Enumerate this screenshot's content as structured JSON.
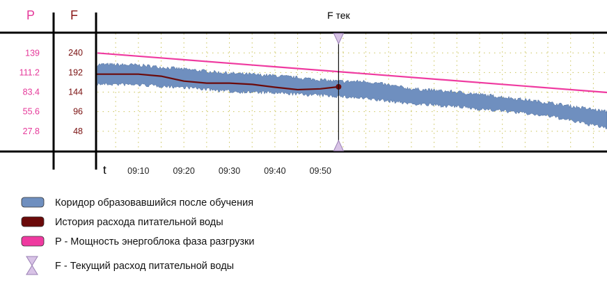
{
  "colors": {
    "corridor": "#6f8fbf",
    "corridor_stroke": "#3f5f8f",
    "history": "#6b0a0a",
    "power": "#ef3aa0",
    "cursor_fill": "#d8c3e6",
    "cursor_stroke": "#9a7fb4",
    "grid": "#c9c255",
    "axis": "#000000"
  },
  "chart_data": {
    "type": "line",
    "x_label": "t",
    "x_ticks": [
      "09:10",
      "09:20",
      "09:30",
      "09:40",
      "09:50"
    ],
    "x_tick_minutes": [
      10,
      20,
      30,
      40,
      50
    ],
    "x_range_minutes": [
      1,
      113
    ],
    "left_axis": {
      "label": "P",
      "ticks": [
        "139",
        "111.2",
        "83.4",
        "55.6",
        "27.8"
      ],
      "tick_values": [
        139,
        111.2,
        83.4,
        55.6,
        27.8
      ],
      "range": [
        0,
        167
      ]
    },
    "right_axis": {
      "label": "F",
      "ticks": [
        "240",
        "192",
        "144",
        "96",
        "48"
      ],
      "tick_values": [
        240,
        192,
        144,
        96,
        48
      ],
      "range": [
        0,
        288
      ]
    },
    "grid": true,
    "cursor": {
      "label": "F тек",
      "x_minutes": 54
    },
    "series": [
      {
        "name": "Коридор образовавшийся после обучения",
        "kind": "band",
        "axis": "F",
        "x_minutes": [
          1,
          10,
          20,
          30,
          40,
          54,
          60,
          70,
          80,
          90,
          100,
          113
        ],
        "lower": [
          168,
          166,
          160,
          150,
          146,
          138,
          132,
          120,
          112,
          102,
          90,
          60
        ],
        "upper": [
          208,
          206,
          196,
          186,
          180,
          166,
          166,
          148,
          140,
          128,
          114,
          92
        ]
      },
      {
        "name": "История расхода питательной воды",
        "kind": "line",
        "axis": "F",
        "x_minutes": [
          1,
          5,
          10,
          15,
          20,
          25,
          30,
          35,
          40,
          45,
          50,
          54
        ],
        "y": [
          188,
          188,
          188,
          183,
          171,
          166,
          166,
          163,
          156,
          150,
          152,
          157
        ]
      },
      {
        "name": "P - Мощность энергоблока фаза разгрузки",
        "kind": "line",
        "axis": "P",
        "x_minutes": [
          1,
          113
        ],
        "y": [
          139,
          83
        ]
      }
    ]
  },
  "legend": [
    {
      "label": "Коридор образовавшийся после обучения",
      "color": "#6f8fbf",
      "shape": "rect"
    },
    {
      "label": "История расхода питательной воды",
      "color": "#6b0a0a",
      "shape": "rect"
    },
    {
      "label": "P - Мощность энергоблока фаза разгрузки",
      "color": "#ef3aa0",
      "shape": "rect"
    },
    {
      "label": "F - Текущий расход  питательной воды",
      "color": "#d8c3e6",
      "shape": "hourglass"
    }
  ]
}
